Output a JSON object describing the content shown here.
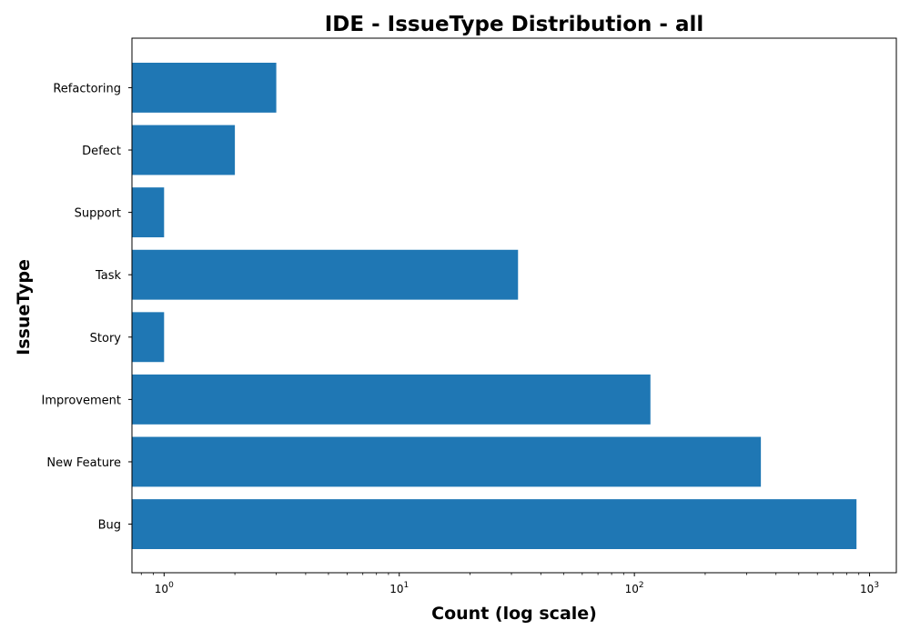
{
  "chart_data": {
    "type": "bar",
    "orientation": "horizontal",
    "title": "IDE - IssueType Distribution - all",
    "xlabel": "Count (log scale)",
    "ylabel": "IssueType",
    "xscale": "log",
    "xlim": [
      0.73,
      1300
    ],
    "x_ticks": [
      {
        "value": 1,
        "base": "10",
        "exp": "0"
      },
      {
        "value": 10,
        "base": "10",
        "exp": "1"
      },
      {
        "value": 100,
        "base": "10",
        "exp": "2"
      },
      {
        "value": 1000,
        "base": "10",
        "exp": "3"
      }
    ],
    "categories": [
      "Bug",
      "New Feature",
      "Improvement",
      "Story",
      "Task",
      "Support",
      "Defect",
      "Refactoring"
    ],
    "values": [
      880,
      345,
      117,
      1,
      32,
      1,
      2,
      3
    ],
    "bar_color": "#1f77b4",
    "grid": false,
    "legend": "none"
  }
}
